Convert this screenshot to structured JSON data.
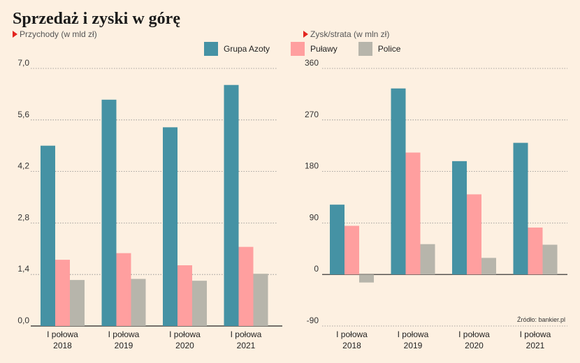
{
  "title": "Sprzedaż i zyski w górę",
  "source": "Źródło: bankier.pl",
  "legend": [
    {
      "name": "Grupa Azoty",
      "color": "#4592a4"
    },
    {
      "name": "Puławy",
      "color": "#ff9f9f"
    },
    {
      "name": "Police",
      "color": "#b7b5ab"
    }
  ],
  "chart_data": [
    {
      "type": "bar",
      "subtitle": "Przychody (w mld zł)",
      "categories": [
        [
          "I połowa",
          "2018"
        ],
        [
          "I połowa",
          "2019"
        ],
        [
          "I połowa",
          "2020"
        ],
        [
          "I połowa",
          "2021"
        ]
      ],
      "series": [
        {
          "name": "Grupa Azoty",
          "values": [
            4.9,
            6.15,
            5.4,
            6.55
          ]
        },
        {
          "name": "Puławy",
          "values": [
            1.8,
            1.98,
            1.65,
            2.15
          ]
        },
        {
          "name": "Police",
          "values": [
            1.25,
            1.28,
            1.23,
            1.42
          ]
        }
      ],
      "ylim": [
        0,
        7.0
      ],
      "yticks": [
        "0,0",
        "1,4",
        "2,8",
        "4,2",
        "5,6",
        "7,0"
      ],
      "ytick_values": [
        0,
        1.4,
        2.8,
        4.2,
        5.6,
        7.0
      ],
      "grid": true
    },
    {
      "type": "bar",
      "subtitle": "Zysk/strata (w mln zł)",
      "categories": [
        [
          "I połowa",
          "2018"
        ],
        [
          "I połowa",
          "2019"
        ],
        [
          "I połowa",
          "2020"
        ],
        [
          "I połowa",
          "2021"
        ]
      ],
      "series": [
        {
          "name": "Grupa Azoty",
          "values": [
            122,
            325,
            198,
            230
          ]
        },
        {
          "name": "Puławy",
          "values": [
            85,
            213,
            140,
            82
          ]
        },
        {
          "name": "Police",
          "values": [
            -14,
            53,
            29,
            52
          ]
        }
      ],
      "ylim": [
        -90,
        360
      ],
      "yticks": [
        "-90",
        "0",
        "90",
        "180",
        "270",
        "360"
      ],
      "ytick_values": [
        -90,
        0,
        90,
        180,
        270,
        360
      ],
      "grid": true
    }
  ]
}
